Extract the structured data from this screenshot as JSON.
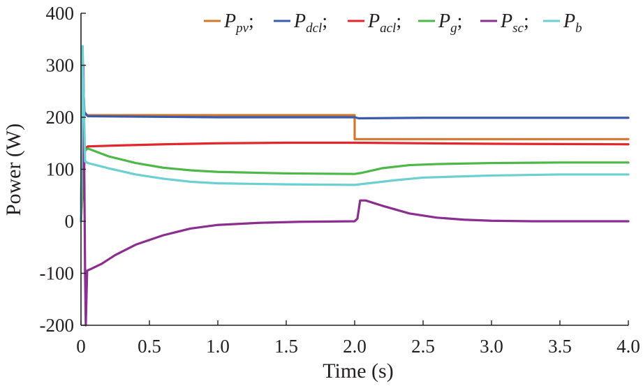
{
  "chart_data": {
    "type": "line",
    "title": "",
    "xlabel": "Time (s)",
    "ylabel": "Power (W)",
    "xlim": [
      0,
      4.0
    ],
    "ylim": [
      -200,
      400
    ],
    "x_ticks": [
      0,
      0.5,
      1.0,
      1.5,
      2.0,
      2.5,
      3.0,
      3.5,
      4.0
    ],
    "x_tick_labels": [
      "0",
      "0.5",
      "1.0",
      "1.5",
      "2.0",
      "2.5",
      "3.0",
      "3.5",
      "4.0"
    ],
    "y_ticks": [
      -200,
      -100,
      0,
      100,
      200,
      300,
      400
    ],
    "y_tick_labels": [
      "-200",
      "-100",
      "0",
      "100",
      "200",
      "300",
      "400"
    ],
    "grid": false,
    "legend_position": "top",
    "series": [
      {
        "name": "P_pv",
        "symbol": "P",
        "subscript": "pv",
        "color": "#d1782e",
        "points": [
          [
            0,
            0
          ],
          [
            0.008,
            228
          ],
          [
            0.02,
            206
          ],
          [
            0.05,
            204
          ],
          [
            2.0,
            204
          ],
          [
            2.0,
            158
          ],
          [
            4.0,
            158
          ]
        ]
      },
      {
        "name": "P_dcl",
        "symbol": "P",
        "subscript": "dcl",
        "color": "#3a5bab",
        "points": [
          [
            0,
            0
          ],
          [
            0.012,
            295
          ],
          [
            0.025,
            210
          ],
          [
            0.05,
            202
          ],
          [
            1.0,
            200
          ],
          [
            2.0,
            200
          ],
          [
            2.03,
            198
          ],
          [
            2.5,
            199
          ],
          [
            4.0,
            199
          ]
        ]
      },
      {
        "name": "P_acl",
        "symbol": "P",
        "subscript": "acl",
        "color": "#e3262b",
        "points": [
          [
            0,
            0
          ],
          [
            0.03,
            140
          ],
          [
            0.05,
            144
          ],
          [
            0.3,
            146
          ],
          [
            0.6,
            148
          ],
          [
            1.0,
            150
          ],
          [
            1.5,
            151
          ],
          [
            2.0,
            151
          ],
          [
            2.5,
            150
          ],
          [
            3.0,
            149
          ],
          [
            4.0,
            148
          ]
        ]
      },
      {
        "name": "P_g",
        "symbol": "P",
        "subscript": "g",
        "color": "#4db848",
        "points": [
          [
            0,
            0
          ],
          [
            0.025,
            135
          ],
          [
            0.05,
            140
          ],
          [
            0.2,
            125
          ],
          [
            0.4,
            112
          ],
          [
            0.6,
            103
          ],
          [
            0.8,
            98
          ],
          [
            1.0,
            95
          ],
          [
            1.5,
            92
          ],
          [
            2.0,
            91
          ],
          [
            2.05,
            93
          ],
          [
            2.2,
            102
          ],
          [
            2.4,
            108
          ],
          [
            2.6,
            110
          ],
          [
            3.0,
            112
          ],
          [
            3.5,
            113
          ],
          [
            4.0,
            113
          ]
        ]
      },
      {
        "name": "P_sc",
        "symbol": "P",
        "subscript": "sc",
        "color": "#8b2e8f",
        "points": [
          [
            0,
            0
          ],
          [
            0.018,
            300
          ],
          [
            0.03,
            -100
          ],
          [
            0.035,
            -200
          ],
          [
            0.045,
            -95
          ],
          [
            0.07,
            -92
          ],
          [
            0.15,
            -82
          ],
          [
            0.25,
            -65
          ],
          [
            0.4,
            -45
          ],
          [
            0.6,
            -27
          ],
          [
            0.8,
            -14
          ],
          [
            1.0,
            -7
          ],
          [
            1.3,
            -3
          ],
          [
            1.6,
            -1
          ],
          [
            2.0,
            0
          ],
          [
            2.02,
            5
          ],
          [
            2.04,
            40
          ],
          [
            2.08,
            40
          ],
          [
            2.2,
            30
          ],
          [
            2.4,
            15
          ],
          [
            2.6,
            7
          ],
          [
            2.8,
            3
          ],
          [
            3.0,
            1
          ],
          [
            3.3,
            0
          ],
          [
            4.0,
            0
          ]
        ]
      },
      {
        "name": "P_b",
        "symbol": "P",
        "subscript": "b",
        "color": "#6ccfd1",
        "points": [
          [
            0,
            0
          ],
          [
            0.012,
            337
          ],
          [
            0.03,
            115
          ],
          [
            0.05,
            112
          ],
          [
            0.2,
            102
          ],
          [
            0.4,
            90
          ],
          [
            0.6,
            82
          ],
          [
            0.8,
            76
          ],
          [
            1.0,
            73
          ],
          [
            1.5,
            71
          ],
          [
            2.0,
            70
          ],
          [
            2.1,
            73
          ],
          [
            2.3,
            79
          ],
          [
            2.5,
            84
          ],
          [
            3.0,
            88
          ],
          [
            3.5,
            90
          ],
          [
            4.0,
            90
          ]
        ]
      }
    ]
  }
}
